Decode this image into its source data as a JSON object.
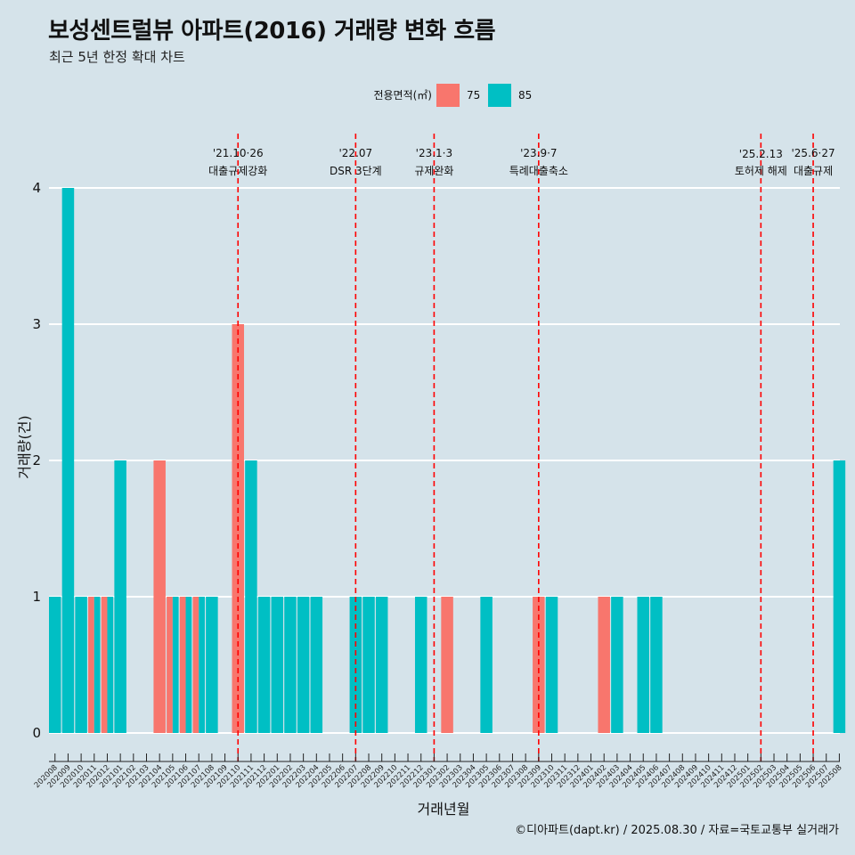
{
  "title": "보성센트럴뷰 아파트(2016) 거래량 변화 흐름",
  "subtitle": "최근 5년 한정 확대 차트",
  "caption": "©디아파트(dapt.kr) / 2025.08.30 / 자료=국토교통부 실거래가",
  "chart_data": {
    "type": "bar",
    "title": "보성센트럴뷰 아파트(2016) 거래량 변화 흐름",
    "subtitle": "최근 5년 한정 확대 차트",
    "xlabel": "거래년월",
    "ylabel": "거래량(건)",
    "ylim": [
      0,
      4
    ],
    "yticks": [
      0,
      1,
      2,
      3,
      4
    ],
    "grid": "horizontal",
    "legend": {
      "title": "전용면적(㎡)",
      "position": "top"
    },
    "categories": [
      "202008",
      "202009",
      "202010",
      "202011",
      "202012",
      "202101",
      "202102",
      "202103",
      "202104",
      "202105",
      "202106",
      "202107",
      "202108",
      "202109",
      "202110",
      "202111",
      "202112",
      "202201",
      "202202",
      "202203",
      "202204",
      "202205",
      "202206",
      "202207",
      "202208",
      "202209",
      "202210",
      "202211",
      "202212",
      "202301",
      "202302",
      "202303",
      "202304",
      "202305",
      "202306",
      "202307",
      "202308",
      "202309",
      "202310",
      "202311",
      "202312",
      "202401",
      "202402",
      "202403",
      "202404",
      "202405",
      "202406",
      "202407",
      "202408",
      "202409",
      "202410",
      "202411",
      "202412",
      "202501",
      "202502",
      "202503",
      "202504",
      "202505",
      "202506",
      "202507",
      "202508"
    ],
    "series": [
      {
        "name": "75",
        "color": "#f8766d",
        "values": [
          0,
          0,
          0,
          1,
          1,
          0,
          0,
          0,
          2,
          1,
          1,
          1,
          0,
          0,
          3,
          0,
          0,
          0,
          0,
          0,
          0,
          0,
          0,
          0,
          0,
          0,
          0,
          0,
          0,
          0,
          1,
          0,
          0,
          0,
          0,
          0,
          0,
          1,
          0,
          0,
          0,
          0,
          1,
          0,
          0,
          0,
          0,
          0,
          0,
          0,
          0,
          0,
          0,
          0,
          0,
          0,
          0,
          0,
          0,
          0,
          0
        ]
      },
      {
        "name": "85",
        "color": "#00bfc4",
        "values": [
          1,
          4,
          1,
          1,
          1,
          2,
          0,
          0,
          0,
          1,
          1,
          1,
          1,
          0,
          0,
          2,
          1,
          1,
          1,
          1,
          1,
          0,
          0,
          1,
          1,
          1,
          0,
          0,
          1,
          0,
          0,
          0,
          0,
          1,
          0,
          0,
          0,
          0,
          1,
          0,
          0,
          0,
          0,
          1,
          0,
          1,
          1,
          0,
          0,
          0,
          0,
          0,
          0,
          0,
          0,
          0,
          0,
          0,
          0,
          0,
          2
        ]
      }
    ],
    "events": [
      {
        "date": "'21.10·26",
        "label": "대출규제강화",
        "x": "202110"
      },
      {
        "date": "'22.07",
        "label": "DSR 3단계",
        "x": "202207"
      },
      {
        "date": "'23.1·3",
        "label": "규제완화",
        "x": "202301"
      },
      {
        "date": "'23.9·7",
        "label": "특례대출축소",
        "x": "202309"
      },
      {
        "date": "'25.2.13",
        "label": "토허제 해제",
        "x": "202502"
      },
      {
        "date": "'25.6·27",
        "label": "대출규제",
        "x": "202506"
      }
    ],
    "event_line_color": "#ff0000"
  }
}
